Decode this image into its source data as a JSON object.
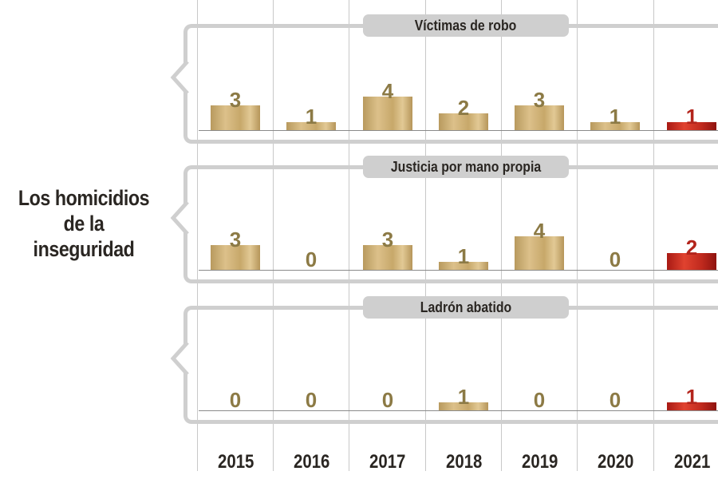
{
  "title": "Los homicidios de la inseguridad",
  "title_lines": [
    "Los homicidios",
    "de la",
    "inseguridad"
  ],
  "colors": {
    "gold": "#c9a96b",
    "highlight_red": "#c62a1e",
    "panel_gray": "#cfcfcf",
    "value_text": "#8c7a45"
  },
  "chart_data": {
    "type": "bar",
    "title": "Los homicidios de la inseguridad",
    "categories": [
      "2015",
      "2016",
      "2017",
      "2018",
      "2019",
      "2020",
      "2021"
    ],
    "series": [
      {
        "name": "Víctimas de robo",
        "values": [
          3,
          1,
          4,
          2,
          3,
          1,
          1
        ]
      },
      {
        "name": "Justicia por mano propia",
        "values": [
          3,
          0,
          3,
          1,
          4,
          0,
          2
        ]
      },
      {
        "name": "Ladrón abatido",
        "values": [
          0,
          0,
          0,
          1,
          0,
          0,
          1
        ]
      }
    ],
    "highlighted_category": "2021",
    "xlabel": "",
    "ylabel": "",
    "grid": "vertical separators",
    "legend": "panel labels"
  },
  "panels": [
    {
      "label": "Víctimas de robo",
      "values": [
        "3",
        "1",
        "4",
        "2",
        "3",
        "1",
        "1"
      ]
    },
    {
      "label": "Justicia por mano propia",
      "values": [
        "3",
        "0",
        "3",
        "1",
        "4",
        "0",
        "2"
      ]
    },
    {
      "label": "Ladrón abatido",
      "values": [
        "0",
        "0",
        "0",
        "1",
        "0",
        "0",
        "1"
      ]
    }
  ],
  "years": [
    "2015",
    "2016",
    "2017",
    "2018",
    "2019",
    "2020",
    "2021"
  ]
}
